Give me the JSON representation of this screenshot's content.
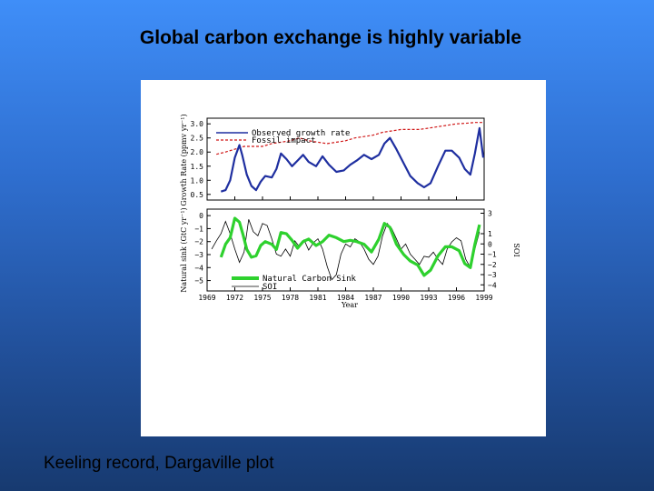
{
  "slide": {
    "title": "Global carbon exchange is highly variable",
    "caption": "Keeling record, Dargaville plot"
  },
  "colors": {
    "observed": "#1f2fa0",
    "fossil": "#d01818",
    "sink": "#2ed12e",
    "soi": "#000000"
  },
  "chart_data": [
    {
      "type": "line",
      "panel": "top",
      "ylabel": "Growth Rate (ppmv yr⁻¹)",
      "ylim": [
        0.3,
        3.2
      ],
      "yticks": [
        "3.0",
        "2.5",
        "2.0",
        "1.5",
        "1.0",
        "0.5"
      ],
      "ytick_values": [
        3.0,
        2.5,
        2.0,
        1.5,
        1.0,
        0.5
      ],
      "legend": [
        "Observed growth rate",
        "Fossil impact"
      ],
      "series": [
        {
          "name": "Observed growth rate",
          "x": [
            1970.5,
            1971,
            1971.5,
            1972,
            1972.5,
            1972.8,
            1973.3,
            1973.8,
            1974.3,
            1974.8,
            1975.3,
            1976,
            1976.5,
            1977,
            1977.6,
            1978.2,
            1978.8,
            1979.4,
            1980,
            1980.8,
            1981.5,
            1982.2,
            1983,
            1983.8,
            1984.5,
            1985.2,
            1986,
            1986.8,
            1987.6,
            1988.2,
            1988.8,
            1989.5,
            1990.3,
            1991,
            1991.8,
            1992.5,
            1993.2,
            1994,
            1994.8,
            1995.5,
            1996.3,
            1996.9,
            1997.5,
            1998,
            1998.5,
            1998.9
          ],
          "y": [
            0.6,
            0.65,
            1.0,
            1.8,
            2.25,
            1.9,
            1.2,
            0.8,
            0.65,
            0.95,
            1.15,
            1.1,
            1.4,
            1.95,
            1.75,
            1.5,
            1.7,
            1.9,
            1.65,
            1.5,
            1.85,
            1.55,
            1.3,
            1.35,
            1.55,
            1.7,
            1.9,
            1.75,
            1.9,
            2.3,
            2.5,
            2.1,
            1.6,
            1.15,
            0.9,
            0.75,
            0.9,
            1.5,
            2.05,
            2.05,
            1.8,
            1.4,
            1.2,
            1.95,
            2.85,
            1.8
          ]
        },
        {
          "name": "Fossil impact",
          "x": [
            1970,
            1971,
            1972,
            1973,
            1974,
            1975,
            1976,
            1977,
            1978,
            1979,
            1980,
            1981,
            1982,
            1983,
            1984,
            1985,
            1986,
            1987,
            1988,
            1989,
            1990,
            1991,
            1992,
            1993,
            1994,
            1995,
            1996,
            1997,
            1998,
            1998.8
          ],
          "y": [
            1.92,
            2.0,
            2.1,
            2.2,
            2.2,
            2.2,
            2.3,
            2.35,
            2.4,
            2.5,
            2.4,
            2.35,
            2.3,
            2.35,
            2.4,
            2.5,
            2.55,
            2.6,
            2.7,
            2.75,
            2.8,
            2.8,
            2.8,
            2.85,
            2.9,
            2.95,
            3.0,
            3.02,
            3.05,
            3.05
          ]
        }
      ]
    },
    {
      "type": "line",
      "panel": "bottom",
      "xlabel": "Year",
      "ylabel": "Natural sink (GtC yr⁻¹)",
      "ylabel_right": "SOI",
      "xlim": [
        1969,
        1999
      ],
      "ylim": [
        -5.8,
        0.5
      ],
      "xticks": [
        "1969",
        "1972",
        "1975",
        "1978",
        "1981",
        "1984",
        "1987",
        "1990",
        "1993",
        "1996",
        "1999"
      ],
      "xtick_values": [
        1969,
        1972,
        1975,
        1978,
        1981,
        1984,
        1987,
        1990,
        1993,
        1996,
        1999
      ],
      "yticks": [
        "0",
        "−1",
        "−2",
        "−3",
        "−4",
        "−5"
      ],
      "ytick_values": [
        0,
        -1,
        -2,
        -3,
        -4,
        -5
      ],
      "yticks_right": [
        "3",
        "1",
        "0",
        "−1",
        "−2",
        "−3",
        "−4"
      ],
      "yticks_right_values": [
        3,
        1,
        0,
        -1,
        -2,
        -3,
        -4
      ],
      "ylim_right": [
        -4.6,
        3.4
      ],
      "legend": [
        "Natural Carbon Sink",
        "SOI"
      ],
      "series": [
        {
          "name": "Natural Carbon Sink",
          "x": [
            1970.5,
            1971,
            1971.5,
            1972,
            1972.5,
            1972.9,
            1973.3,
            1973.8,
            1974.3,
            1974.8,
            1975.3,
            1976,
            1976.5,
            1977,
            1977.6,
            1978.2,
            1978.8,
            1979.4,
            1980,
            1980.8,
            1981.5,
            1982.2,
            1983,
            1983.8,
            1984.5,
            1985.2,
            1986,
            1986.8,
            1987.6,
            1988.2,
            1988.8,
            1989.5,
            1990.3,
            1991,
            1991.8,
            1992.5,
            1993.2,
            1994,
            1994.8,
            1995.5,
            1996.3,
            1996.9,
            1997.5,
            1998,
            1998.5
          ],
          "y": [
            -3.2,
            -2.2,
            -1.7,
            -0.2,
            -0.5,
            -1.5,
            -2.6,
            -3.2,
            -3.1,
            -2.3,
            -2.0,
            -2.2,
            -2.6,
            -1.3,
            -1.4,
            -1.9,
            -2.5,
            -2.0,
            -1.8,
            -2.3,
            -2.0,
            -1.5,
            -1.7,
            -2.0,
            -1.9,
            -2.0,
            -2.2,
            -2.8,
            -1.8,
            -0.6,
            -0.9,
            -2.2,
            -3.0,
            -3.5,
            -3.8,
            -4.6,
            -4.2,
            -3.1,
            -2.4,
            -2.4,
            -2.7,
            -3.7,
            -4.0,
            -2.2,
            -0.7
          ]
        },
        {
          "name": "SOI",
          "x": [
            1969.5,
            1970,
            1970.5,
            1971,
            1971.5,
            1972,
            1972.5,
            1973,
            1973.5,
            1974,
            1974.5,
            1975,
            1975.5,
            1976,
            1976.5,
            1977,
            1977.5,
            1978,
            1978.5,
            1979,
            1979.5,
            1980,
            1980.5,
            1981,
            1981.5,
            1982,
            1982.5,
            1983,
            1983.5,
            1984,
            1984.5,
            1985,
            1985.5,
            1986,
            1986.5,
            1987,
            1987.5,
            1988,
            1988.5,
            1989,
            1989.5,
            1990,
            1990.5,
            1991,
            1991.5,
            1992,
            1992.5,
            1993,
            1993.5,
            1994,
            1994.5,
            1995,
            1995.5,
            1996,
            1996.5,
            1997,
            1997.5,
            1998,
            1998.5
          ],
          "y": [
            -0.5,
            0.3,
            1.0,
            2.2,
            1.0,
            -0.5,
            -1.8,
            -0.8,
            2.4,
            1.2,
            0.8,
            2.0,
            1.8,
            0.5,
            -1.0,
            -1.2,
            -0.5,
            -1.2,
            0.3,
            -0.3,
            0.4,
            -0.6,
            0.1,
            0.5,
            -0.5,
            -2.2,
            -3.5,
            -3.0,
            -1.0,
            0.0,
            -0.3,
            0.5,
            0.2,
            -0.5,
            -1.5,
            -2.0,
            -1.2,
            0.8,
            2.0,
            1.5,
            0.5,
            -0.5,
            0.0,
            -1.0,
            -1.5,
            -2.0,
            -1.2,
            -1.3,
            -0.8,
            -1.5,
            -2.0,
            -0.5,
            0.2,
            0.6,
            0.3,
            -1.5,
            -2.3,
            -0.5,
            1.2
          ]
        }
      ]
    }
  ]
}
